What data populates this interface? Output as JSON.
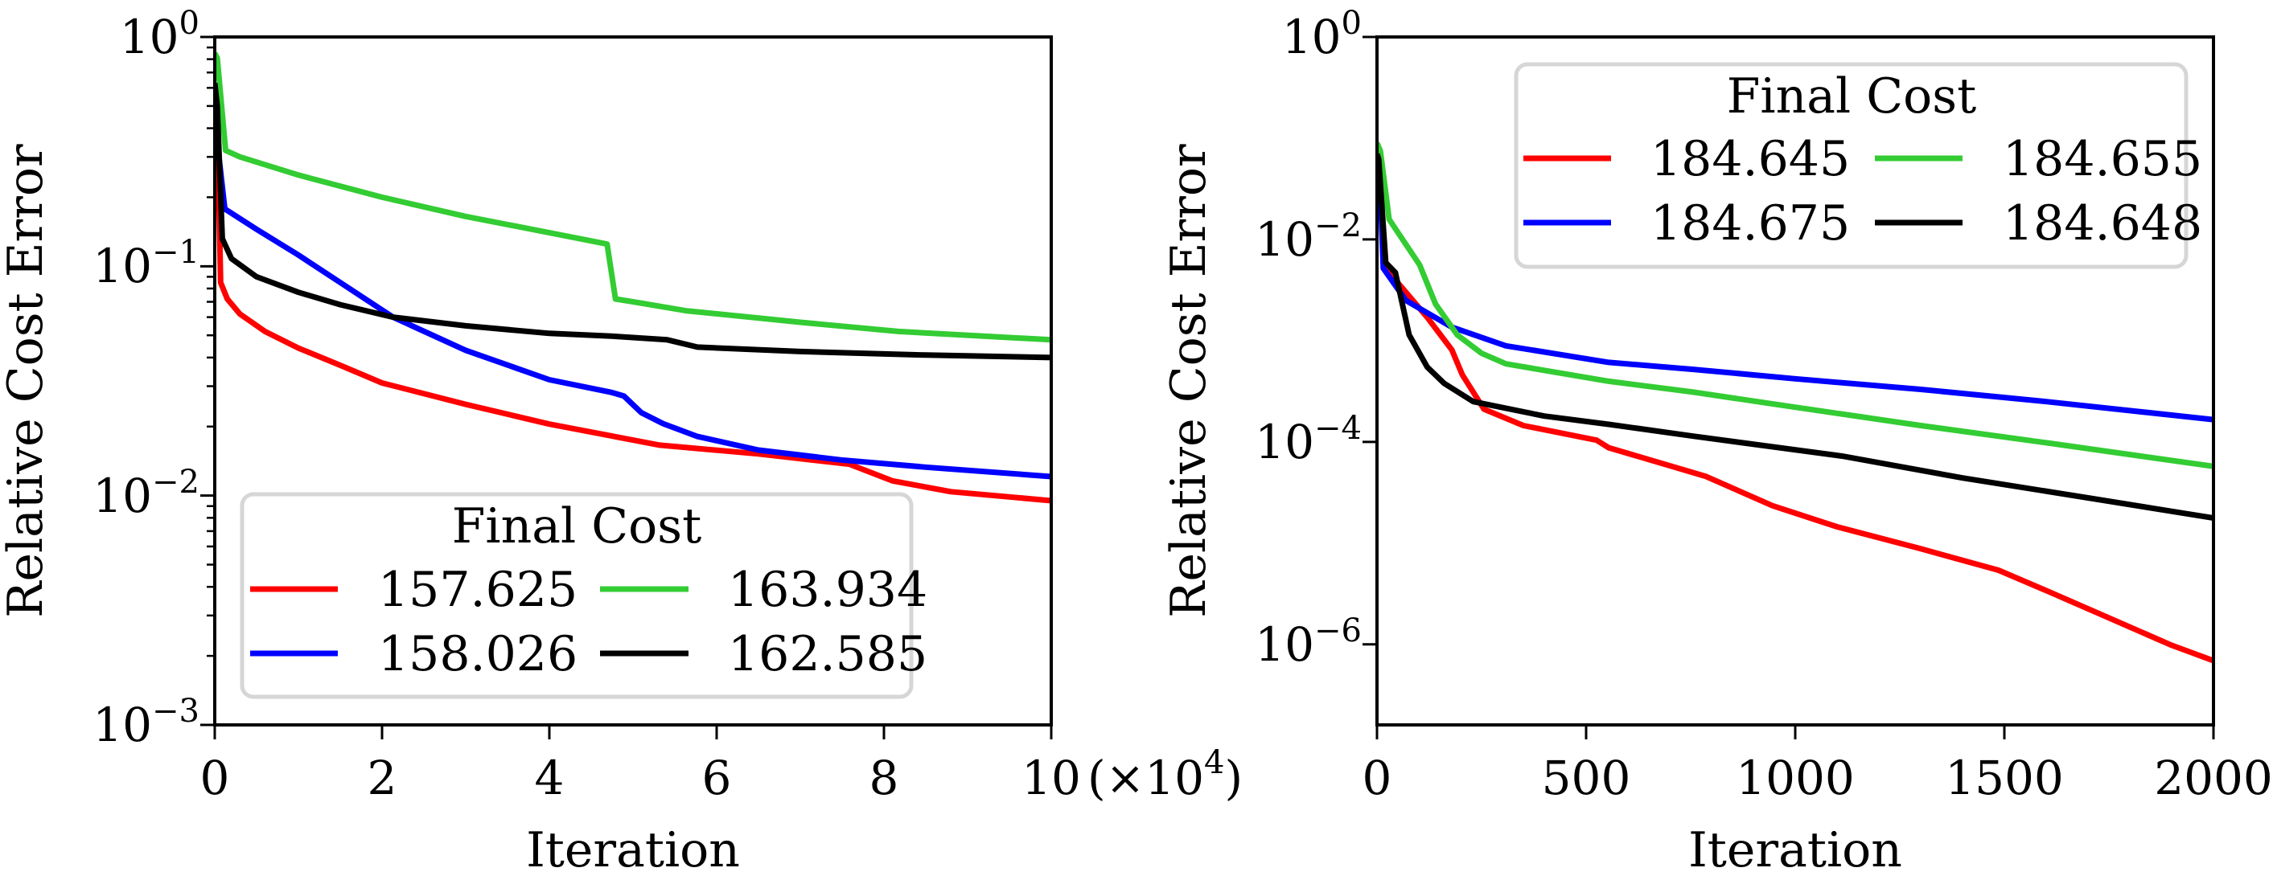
{
  "chart_data": [
    {
      "type": "line",
      "title": "",
      "xlabel": "Iteration",
      "ylabel": "Relative Cost Error",
      "x_scale_note": "(×10",
      "x_scale_exp": "4",
      "x_scale_close": ")",
      "xlim": [
        0,
        10
      ],
      "yscale": "log",
      "ylim": [
        0.001,
        1
      ],
      "minor_ticks": true,
      "grid": false,
      "xticks": [
        {
          "value": 0,
          "label": "0"
        },
        {
          "value": 2,
          "label": "2"
        },
        {
          "value": 4,
          "label": "4"
        },
        {
          "value": 6,
          "label": "6"
        },
        {
          "value": 8,
          "label": "8"
        },
        {
          "value": 10,
          "label": "10"
        }
      ],
      "yticks": [
        {
          "value": 1,
          "base": "10",
          "exp": "0"
        },
        {
          "value": 0.1,
          "base": "10",
          "exp": "−1"
        },
        {
          "value": 0.01,
          "base": "10",
          "exp": "−2"
        },
        {
          "value": 0.001,
          "base": "10",
          "exp": "−3"
        }
      ],
      "legend": {
        "title": "Final Cost",
        "placement": "lower-left",
        "columns": 2
      },
      "series": [
        {
          "name": "157.625",
          "color": "#ff0000",
          "x": [
            0.0,
            0.05,
            0.07,
            0.15,
            0.3,
            0.6,
            1.0,
            1.5,
            2.0,
            3.0,
            4.0,
            5.32,
            6.5,
            7.59,
            8.1,
            8.8,
            10.0
          ],
          "y": [
            0.55,
            0.2,
            0.085,
            0.072,
            0.062,
            0.052,
            0.044,
            0.037,
            0.031,
            0.025,
            0.0205,
            0.0166,
            0.0152,
            0.0137,
            0.0116,
            0.0104,
            0.0095
          ]
        },
        {
          "name": "158.026",
          "color": "#0000ff",
          "x": [
            0.0,
            0.05,
            0.12,
            0.5,
            1.0,
            1.5,
            2.13,
            3.0,
            4.0,
            4.74,
            4.89,
            5.1,
            5.36,
            5.77,
            6.5,
            7.49,
            8.5,
            10.0
          ],
          "y": [
            0.4,
            0.3,
            0.178,
            0.145,
            0.112,
            0.085,
            0.06,
            0.043,
            0.032,
            0.0282,
            0.0272,
            0.023,
            0.0206,
            0.0181,
            0.0158,
            0.0143,
            0.0133,
            0.0121
          ]
        },
        {
          "name": "163.934",
          "color": "#33cc33",
          "x": [
            0.0,
            0.03,
            0.13,
            0.3,
            1.0,
            2.0,
            3.0,
            4.0,
            4.69,
            4.79,
            5.0,
            5.63,
            7.0,
            8.17,
            10.0
          ],
          "y": [
            0.85,
            0.81,
            0.32,
            0.3,
            0.25,
            0.2,
            0.165,
            0.14,
            0.125,
            0.072,
            0.07,
            0.064,
            0.057,
            0.052,
            0.0478
          ]
        },
        {
          "name": "162.585",
          "color": "#000000",
          "x": [
            0.0,
            0.03,
            0.09,
            0.2,
            0.5,
            1.0,
            1.5,
            2.13,
            3.0,
            4.0,
            4.74,
            5.41,
            5.77,
            7.0,
            8.5,
            10.0
          ],
          "y": [
            0.63,
            0.5,
            0.132,
            0.108,
            0.09,
            0.077,
            0.068,
            0.06,
            0.055,
            0.051,
            0.0496,
            0.0478,
            0.0444,
            0.0425,
            0.041,
            0.04
          ]
        }
      ]
    },
    {
      "type": "line",
      "title": "",
      "xlabel": "Iteration",
      "ylabel": "Relative Cost Error",
      "xlim": [
        0,
        2000
      ],
      "yscale": "log",
      "ylim": [
        1.6e-07,
        1
      ],
      "minor_ticks": false,
      "grid": false,
      "xticks": [
        {
          "value": 0,
          "label": "0"
        },
        {
          "value": 500,
          "label": "500"
        },
        {
          "value": 1000,
          "label": "1000"
        },
        {
          "value": 1500,
          "label": "1500"
        },
        {
          "value": 2000,
          "label": "2000"
        }
      ],
      "yticks": [
        {
          "value": 1,
          "base": "10",
          "exp": "0"
        },
        {
          "value": 0.01,
          "base": "10",
          "exp": "−2"
        },
        {
          "value": 0.0001,
          "base": "10",
          "exp": "−4"
        },
        {
          "value": 1e-06,
          "base": "10",
          "exp": "−6"
        }
      ],
      "legend": {
        "title": "Final Cost",
        "placement": "upper-right",
        "columns": 2
      },
      "series": [
        {
          "name": "184.645",
          "color": "#ff0000",
          "x": [
            0,
            8,
            20,
            58,
            120,
            179,
            204,
            256,
            350,
            525,
            554,
            787,
            946,
            1100,
            1300,
            1486,
            1600,
            1767,
            1900,
            2000
          ],
          "y": [
            0.05,
            0.03,
            0.0052,
            0.0034,
            0.0017,
            0.00081,
            0.00046,
            0.00021,
            0.000145,
            0.000104,
            8.75e-05,
            4.55e-05,
            2.34e-05,
            1.45e-05,
            8.8e-06,
            5.4e-06,
            3.4e-06,
            1.7e-06,
            9.8e-07,
            6.9e-07
          ]
        },
        {
          "name": "184.675",
          "color": "#0000ff",
          "x": [
            0,
            8,
            15,
            69,
            179,
            308,
            554,
            756,
            1000,
            1300,
            1600,
            2000
          ],
          "y": [
            0.05,
            0.03,
            0.0052,
            0.0025,
            0.00136,
            0.00089,
            0.00061,
            0.00052,
            0.00042,
            0.00033,
            0.00025,
            0.000166
          ]
        },
        {
          "name": "184.655",
          "color": "#33cc33",
          "x": [
            0,
            8,
            29,
            102,
            140,
            192,
            250,
            308,
            554,
            756,
            1000,
            1300,
            1600,
            2000
          ],
          "y": [
            0.09,
            0.0746,
            0.0158,
            0.0056,
            0.0023,
            0.00114,
            0.00075,
            0.00059,
            0.000397,
            0.00031,
            0.00022,
            0.000145,
            9.8e-05,
            5.73e-05
          ]
        },
        {
          "name": "184.648",
          "color": "#000000",
          "x": [
            0,
            4,
            21,
            44,
            77,
            120,
            160,
            230,
            400,
            554,
            756,
            1113,
            1400,
            1700,
            2000
          ],
          "y": [
            0.07,
            0.062,
            0.0059,
            0.0047,
            0.00114,
            0.00055,
            0.00038,
            0.00025,
            0.00018,
            0.000149,
            0.000114,
            7.23e-05,
            4.4e-05,
            2.8e-05,
            1.77e-05
          ]
        }
      ]
    }
  ]
}
